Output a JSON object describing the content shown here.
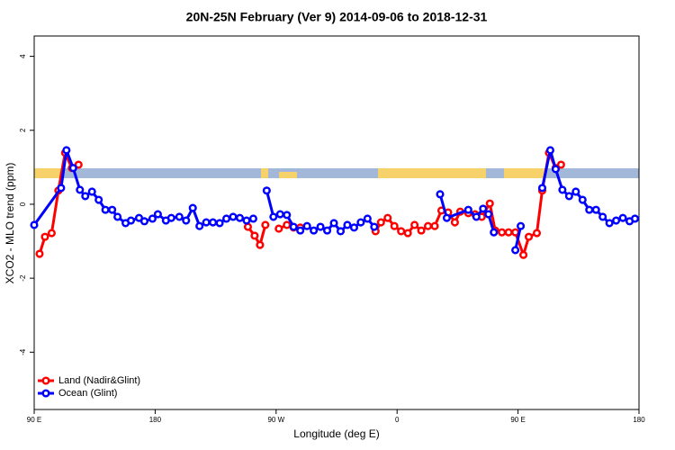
{
  "chart_data": {
    "type": "line",
    "title": "20N-25N February (Ver 9)   2014-09-06 to 2018-12-31",
    "x_label": "Longitude (deg E)",
    "y_label": "XCO2 - MLO trend (ppm)",
    "xlim": [
      90,
      540
    ],
    "ylim": [
      -5.55,
      4.55
    ],
    "xticks": [
      {
        "value": 90,
        "label": "90 E"
      },
      {
        "value": 180,
        "label": "180"
      },
      {
        "value": 270,
        "label": "90 W"
      },
      {
        "value": 360,
        "label": "0"
      },
      {
        "value": 450,
        "label": "90 E"
      },
      {
        "value": 540,
        "label": "180"
      }
    ],
    "yticks": [
      4,
      2,
      0,
      -2,
      -4
    ],
    "legend": "bottom-left",
    "series": [
      {
        "name": "Land (Nadir&Glint)",
        "color": "#ff0000",
        "x": [
          94,
          98,
          103,
          108,
          113,
          118,
          123,
          null,
          249,
          254,
          258,
          262,
          null,
          272,
          278,
          283,
          288,
          null,
          344,
          348,
          353,
          358,
          363,
          368,
          373,
          378,
          383,
          388,
          393,
          398,
          403,
          407,
          413,
          418,
          423,
          429,
          433,
          438,
          443,
          448,
          454,
          458,
          464,
          468,
          473,
          478,
          482
        ],
        "values": [
          -1.34,
          -0.88,
          -0.78,
          0.37,
          1.39,
          0.98,
          1.07,
          null,
          -0.61,
          -0.85,
          -1.1,
          -0.56,
          null,
          -0.66,
          -0.56,
          -0.63,
          -0.63,
          null,
          -0.73,
          -0.49,
          -0.37,
          -0.59,
          -0.73,
          -0.78,
          -0.56,
          -0.71,
          -0.59,
          -0.59,
          -0.17,
          -0.22,
          -0.49,
          -0.2,
          -0.24,
          -0.27,
          -0.34,
          0.02,
          -0.71,
          -0.76,
          -0.76,
          -0.76,
          -1.37,
          -0.88,
          -0.78,
          0.37,
          1.39,
          0.98,
          1.07
        ]
      },
      {
        "name": "Ocean (Glint)",
        "color": "#0000ff",
        "x": [
          90,
          110,
          114,
          119,
          124,
          128,
          133,
          138,
          143,
          148,
          152,
          158,
          162,
          168,
          172,
          178,
          182,
          188,
          192,
          198,
          203,
          208,
          213,
          218,
          223,
          228,
          233,
          238,
          243,
          248,
          253,
          null,
          263,
          268,
          273,
          278,
          283,
          288,
          293,
          298,
          303,
          308,
          313,
          318,
          323,
          328,
          333,
          338,
          343,
          null,
          392,
          397,
          413,
          419,
          424,
          428,
          432,
          null,
          448,
          452,
          null,
          468,
          474,
          478,
          483,
          488,
          493,
          498,
          503,
          508,
          513,
          518,
          523,
          528,
          533,
          537
        ],
        "values": [
          -0.56,
          0.44,
          1.46,
          0.98,
          0.39,
          0.22,
          0.34,
          0.12,
          -0.15,
          -0.15,
          -0.34,
          -0.51,
          -0.44,
          -0.37,
          -0.46,
          -0.39,
          -0.27,
          -0.44,
          -0.37,
          -0.34,
          -0.44,
          -0.1,
          -0.59,
          -0.49,
          -0.49,
          -0.51,
          -0.39,
          -0.34,
          -0.37,
          -0.44,
          -0.39,
          null,
          0.37,
          -0.34,
          -0.27,
          -0.29,
          -0.61,
          -0.71,
          -0.59,
          -0.71,
          -0.61,
          -0.71,
          -0.51,
          -0.73,
          -0.56,
          -0.63,
          -0.49,
          -0.39,
          -0.61,
          null,
          0.27,
          -0.37,
          -0.15,
          -0.34,
          -0.12,
          -0.27,
          -0.76,
          null,
          -1.24,
          -0.59,
          null,
          0.44,
          1.46,
          0.95,
          0.39,
          0.22,
          0.34,
          0.12,
          -0.15,
          -0.15,
          -0.34,
          -0.51,
          -0.44,
          -0.37,
          -0.46,
          -0.39
        ]
      }
    ]
  }
}
